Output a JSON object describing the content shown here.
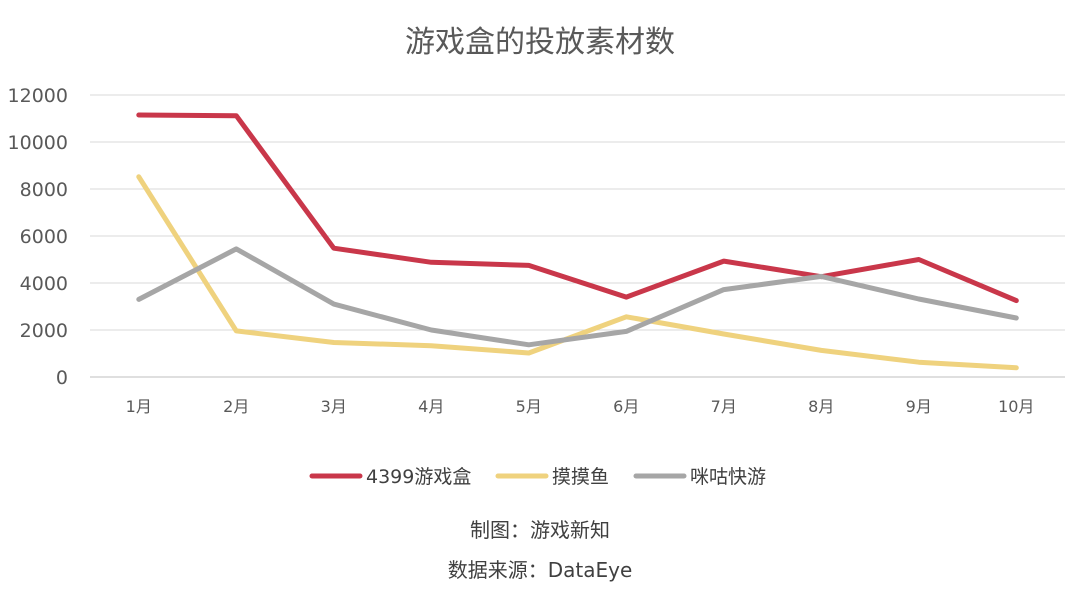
{
  "chart_data": {
    "type": "line",
    "title": "游戏盒的投放素材数",
    "categories": [
      "1月",
      "2月",
      "3月",
      "4月",
      "5月",
      "6月",
      "7月",
      "8月",
      "9月",
      "10月"
    ],
    "ylim": [
      0,
      12000
    ],
    "yticks": [
      "0",
      "2000",
      "4000",
      "6000",
      "8000",
      "10000",
      "12000"
    ],
    "grid": true,
    "legend": "bottom",
    "series": [
      {
        "name": "4399游戏盒",
        "color": "#c9374a",
        "values": [
          11150,
          11120,
          5480,
          4880,
          4750,
          3400,
          4930,
          4270,
          5000,
          3250
        ]
      },
      {
        "name": "摸摸鱼",
        "color": "#efd27e",
        "values": [
          8520,
          1960,
          1470,
          1330,
          1020,
          2560,
          1830,
          1130,
          630,
          390
        ]
      },
      {
        "name": "咪咕快游",
        "color": "#a6a6a6",
        "values": [
          3300,
          5450,
          3100,
          2000,
          1370,
          1940,
          3720,
          4280,
          3320,
          2510
        ]
      }
    ]
  },
  "footer": {
    "credit_line1": "制图：游戏新知",
    "credit_line2": "数据来源：DataEye"
  }
}
